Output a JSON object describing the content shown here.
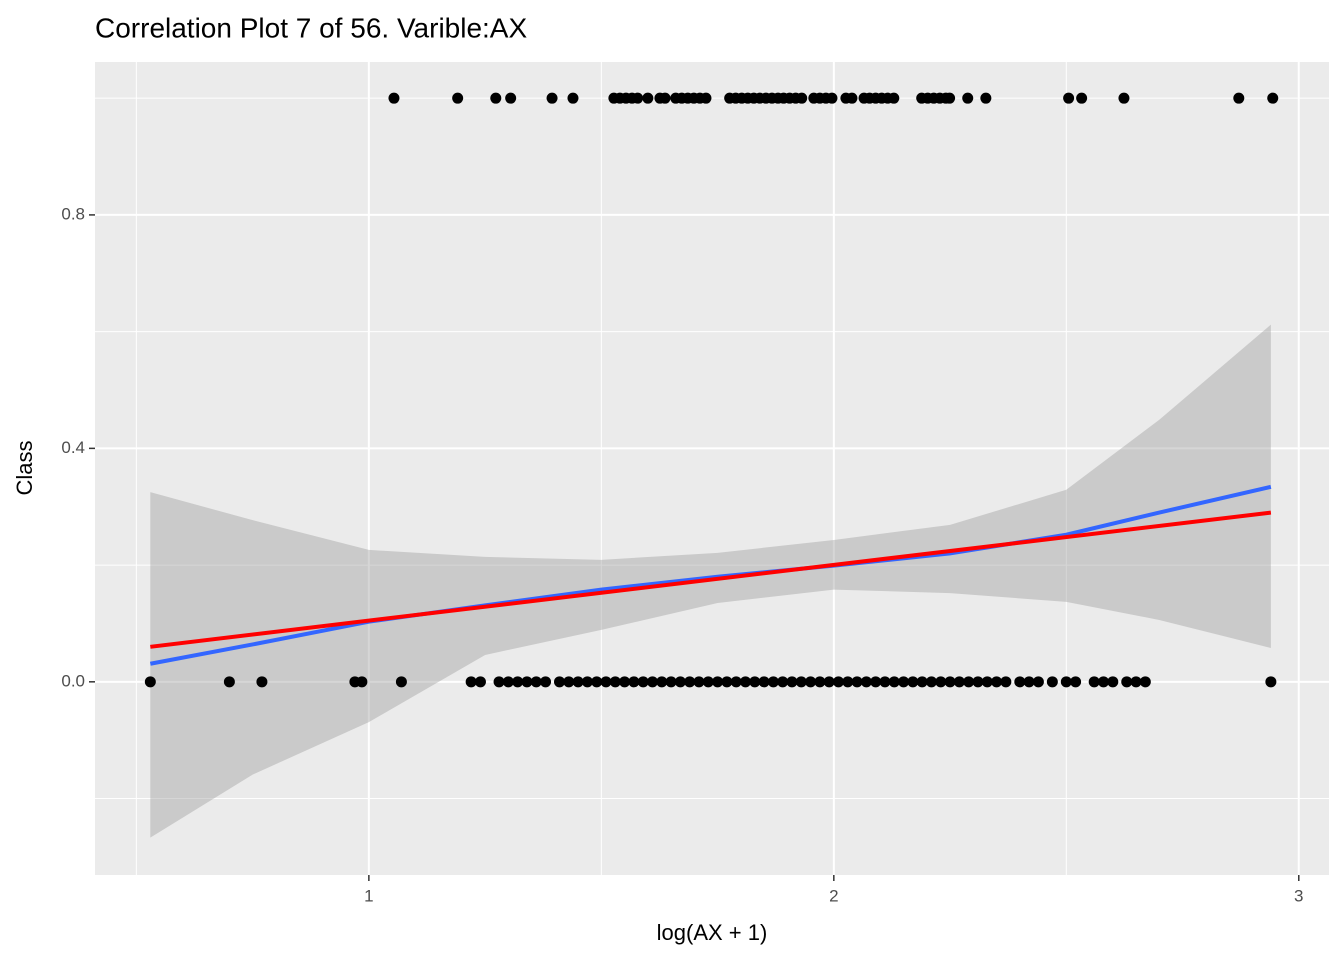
{
  "chart_data": {
    "type": "scatter",
    "title": "Correlation Plot 7 of 56. Varible:AX",
    "x_label": "log(AX + 1)",
    "y_label": "Class",
    "xlim": [
      0.411,
      3.065
    ],
    "ylim": [
      -0.331,
      1.062
    ],
    "xticks": [
      1,
      2,
      3
    ],
    "xminor": [
      0.5,
      1.5,
      2.5
    ],
    "yticks": [
      {
        "value": 0,
        "label": "0.0"
      },
      {
        "value": 0.4,
        "label": "0.4"
      },
      {
        "value": 0.8,
        "label": "0.8"
      }
    ],
    "yminor": [
      -0.2,
      0.2,
      0.6,
      1.0
    ],
    "grid": true,
    "series": [
      {
        "color": "#000000",
        "x": [
          1.054,
          1.191,
          1.273,
          1.305,
          1.394,
          1.439,
          1.527,
          1.54,
          1.553,
          1.566,
          1.578,
          1.6,
          1.626,
          1.637,
          1.66,
          1.673,
          1.686,
          1.699,
          1.712,
          1.725,
          1.776,
          1.789,
          1.802,
          1.815,
          1.828,
          1.841,
          1.854,
          1.867,
          1.88,
          1.892,
          1.905,
          1.918,
          1.931,
          1.957,
          1.97,
          1.983,
          1.996,
          2.026,
          2.039,
          2.065,
          2.077,
          2.09,
          2.103,
          2.116,
          2.129,
          2.189,
          2.202,
          2.215,
          2.228,
          2.241,
          2.249,
          2.288,
          2.327,
          2.505,
          2.533,
          2.624,
          2.871,
          2.944
        ],
        "values": [
          1,
          1,
          1,
          1,
          1,
          1,
          1,
          1,
          1,
          1,
          1,
          1,
          1,
          1,
          1,
          1,
          1,
          1,
          1,
          1,
          1,
          1,
          1,
          1,
          1,
          1,
          1,
          1,
          1,
          1,
          1,
          1,
          1,
          1,
          1,
          1,
          1,
          1,
          1,
          1,
          1,
          1,
          1,
          1,
          1,
          1,
          1,
          1,
          1,
          1,
          1,
          1,
          1,
          1,
          1,
          1,
          1,
          1
        ]
      },
      {
        "color": "#000000",
        "x": [
          0.53,
          0.7,
          0.77,
          0.97,
          0.985,
          1.07,
          1.22,
          1.24,
          1.28,
          1.3,
          1.32,
          1.34,
          1.36,
          1.38,
          1.41,
          1.43,
          1.45,
          1.47,
          1.49,
          1.51,
          1.53,
          1.55,
          1.57,
          1.59,
          1.61,
          1.63,
          1.65,
          1.67,
          1.69,
          1.71,
          1.73,
          1.75,
          1.77,
          1.79,
          1.81,
          1.83,
          1.85,
          1.87,
          1.89,
          1.91,
          1.93,
          1.95,
          1.97,
          1.99,
          2.01,
          2.03,
          2.05,
          2.07,
          2.09,
          2.11,
          2.13,
          2.15,
          2.17,
          2.19,
          2.21,
          2.23,
          2.25,
          2.27,
          2.29,
          2.31,
          2.33,
          2.35,
          2.37,
          2.4,
          2.42,
          2.44,
          2.47,
          2.5,
          2.52,
          2.56,
          2.58,
          2.6,
          2.63,
          2.65,
          2.67,
          2.94
        ],
        "values": [
          0,
          0,
          0,
          0,
          0,
          0,
          0,
          0,
          0,
          0,
          0,
          0,
          0,
          0,
          0,
          0,
          0,
          0,
          0,
          0,
          0,
          0,
          0,
          0,
          0,
          0,
          0,
          0,
          0,
          0,
          0,
          0,
          0,
          0,
          0,
          0,
          0,
          0,
          0,
          0,
          0,
          0,
          0,
          0,
          0,
          0,
          0,
          0,
          0,
          0,
          0,
          0,
          0,
          0,
          0,
          0,
          0,
          0,
          0,
          0,
          0,
          0,
          0,
          0,
          0,
          0,
          0,
          0,
          0,
          0,
          0,
          0,
          0,
          0,
          0,
          0
        ]
      }
    ],
    "band": {
      "color": "#999999",
      "x": [
        0.53,
        0.75,
        1.0,
        1.25,
        1.5,
        1.75,
        2.0,
        2.25,
        2.5,
        2.7,
        2.94
      ],
      "lower": [
        -0.267,
        -0.159,
        -0.069,
        0.046,
        0.089,
        0.135,
        0.158,
        0.152,
        0.137,
        0.106,
        0.058
      ],
      "upper": [
        0.325,
        0.277,
        0.226,
        0.214,
        0.209,
        0.221,
        0.243,
        0.269,
        0.329,
        0.449,
        0.612
      ]
    },
    "lines": [
      {
        "color": "#3366ff",
        "x": [
          0.53,
          0.75,
          1.0,
          1.25,
          1.5,
          1.75,
          2.0,
          2.25,
          2.5,
          2.7,
          2.94
        ],
        "values": [
          0.031,
          0.064,
          0.103,
          0.131,
          0.158,
          0.18,
          0.199,
          0.22,
          0.252,
          0.29,
          0.334
        ]
      },
      {
        "color": "#ff0000",
        "x": [
          0.53,
          2.94
        ],
        "values": [
          0.06,
          0.29
        ]
      }
    ]
  }
}
